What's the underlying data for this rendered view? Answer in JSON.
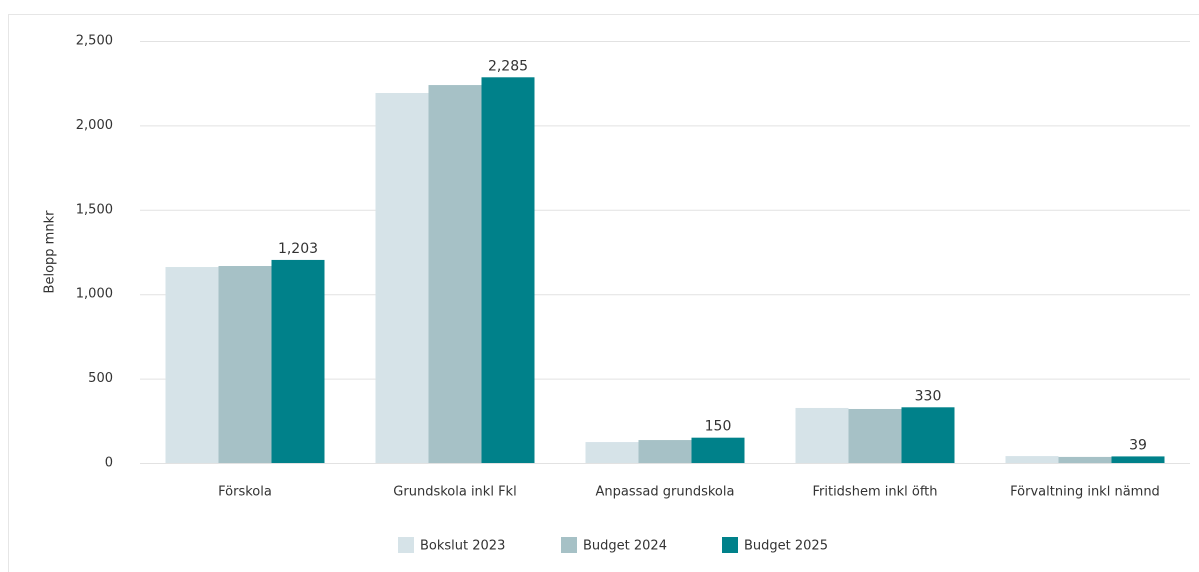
{
  "chart_data": {
    "type": "bar",
    "y_label": "Belopp mnkr",
    "categories": [
      "Förskola",
      "Grundskola inkl Fkl",
      "Anpassad grundskola",
      "Fritidshem inkl öfth",
      "Förvaltning inkl nämnd"
    ],
    "series": [
      {
        "name": "Bokslut 2023",
        "color": "#d6e3e8",
        "values": [
          1161,
          2192,
          124,
          326,
          41
        ]
      },
      {
        "name": "Budget 2024",
        "color": "#a6c1c6",
        "values": [
          1167,
          2239,
          136,
          320,
          36
        ]
      },
      {
        "name": "Budget 2025",
        "color": "#00818a",
        "values": [
          1203,
          2285,
          150,
          330,
          39
        ],
        "value_labels": [
          "1,203",
          "2,285",
          "150",
          "330",
          "39"
        ]
      }
    ],
    "ylim": [
      0,
      2500
    ],
    "yticks": [
      0,
      500,
      {
        "value": 1000,
        "label": "1,000"
      },
      {
        "value": 1500,
        "label": "1,500"
      },
      {
        "value": 2000,
        "label": "2,000"
      },
      {
        "value": 2500,
        "label": "2,500"
      }
    ],
    "grid": true,
    "legend": "bottom"
  }
}
